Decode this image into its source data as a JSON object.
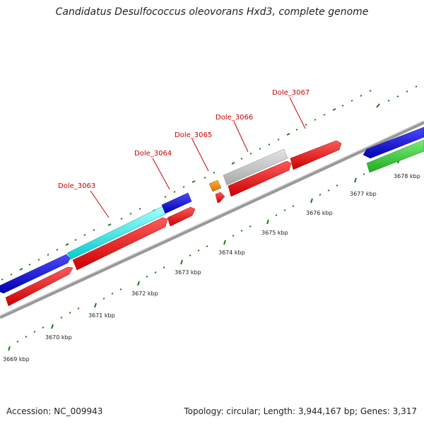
{
  "title": "Candidatus Desulfococcus oleovorans Hxd3, complete genome",
  "footer": {
    "accession": "Accession: NC_009943",
    "topology": "Topology: circular; Length: 3,944,167 bp; Genes: 3,317"
  },
  "colors": {
    "backbone": "#888888",
    "reverse_cds": "#ff0000",
    "forward_blue": "#0000dd",
    "forward_cyan": "#00eeee",
    "forward_gray": "#bbbbbb",
    "forward_orange": "#ff8c00",
    "forward_green": "#33cc33",
    "ticks": "#227722",
    "label": "#cc0000"
  },
  "scale_labels": [
    "3669 kbp",
    "3670 kbp",
    "3671 kbp",
    "3672 kbp",
    "3673 kbp",
    "3674 kbp",
    "3675 kbp",
    "3676 kbp",
    "3677 kbp",
    "3678 kbp"
  ],
  "gene_labels": [
    "Dole_3063",
    "Dole_3064",
    "Dole_3065",
    "Dole_3066",
    "Dole_3067"
  ]
}
